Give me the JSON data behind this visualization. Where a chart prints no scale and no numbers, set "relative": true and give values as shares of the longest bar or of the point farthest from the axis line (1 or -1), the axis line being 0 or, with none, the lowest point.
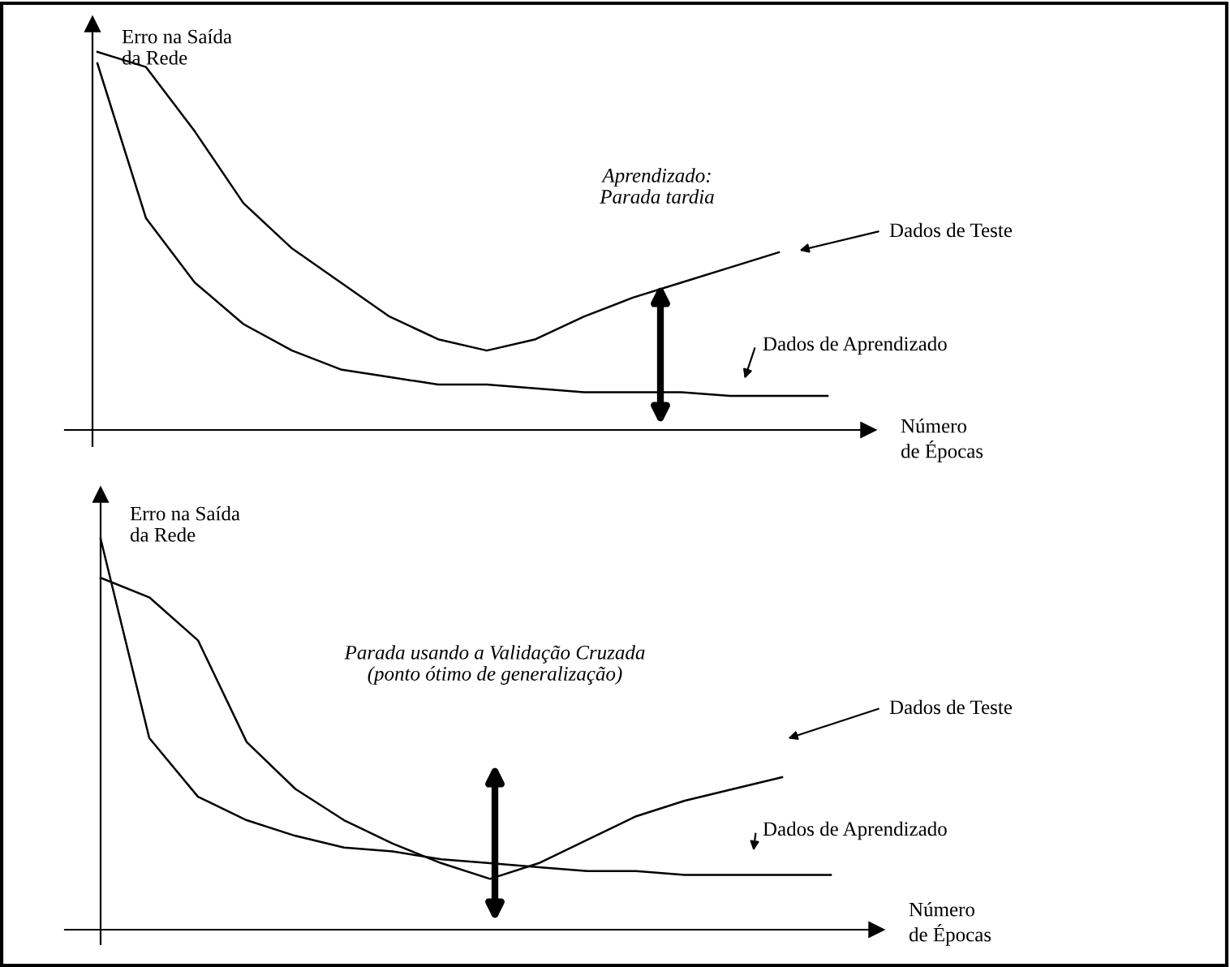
{
  "chart_data": [
    {
      "type": "line",
      "relative": true,
      "xlabel": "Número\nde Épocas",
      "ylabel": "Erro na Saída\nda Rede",
      "categories": [
        null,
        null,
        null,
        null,
        null,
        null,
        null,
        null,
        null,
        null,
        null,
        null,
        null,
        null,
        null,
        null
      ],
      "series": [
        {
          "name": "Dados de Teste",
          "color": "#000000",
          "values": [
            1.0,
            0.96,
            0.79,
            0.6,
            0.48,
            0.39,
            0.3,
            0.24,
            0.21,
            0.24,
            0.3,
            0.35,
            0.39,
            0.43,
            0.47,
            null
          ]
        },
        {
          "name": "Dados de Aprendizado",
          "color": "#000000",
          "values": [
            0.97,
            0.56,
            0.39,
            0.28,
            0.21,
            0.16,
            0.14,
            0.12,
            0.12,
            0.11,
            0.1,
            0.1,
            0.1,
            0.09,
            0.09,
            0.09
          ]
        }
      ],
      "annotations": [
        "Aprendizado:\nParada tardia"
      ]
    },
    {
      "type": "line",
      "relative": true,
      "xlabel": "Número\nde Épocas",
      "ylabel": "Erro na Saída\nda Rede",
      "categories": [
        null,
        null,
        null,
        null,
        null,
        null,
        null,
        null,
        null,
        null,
        null,
        null,
        null,
        null,
        null,
        null
      ],
      "series": [
        {
          "name": "Dados de Teste",
          "color": "#000000",
          "values": [
            0.9,
            0.85,
            0.74,
            0.48,
            0.36,
            0.28,
            0.22,
            0.17,
            0.13,
            0.17,
            0.23,
            0.29,
            0.33,
            0.36,
            0.39,
            null
          ]
        },
        {
          "name": "Dados de Aprendizado",
          "color": "#000000",
          "values": [
            1.0,
            0.49,
            0.34,
            0.28,
            0.24,
            0.21,
            0.2,
            0.18,
            0.17,
            0.16,
            0.15,
            0.15,
            0.14,
            0.14,
            0.14,
            0.14
          ]
        }
      ],
      "annotations": [
        "Parada usando a Validação Cruzada\n(ponto ótimo de generalização)"
      ]
    }
  ]
}
